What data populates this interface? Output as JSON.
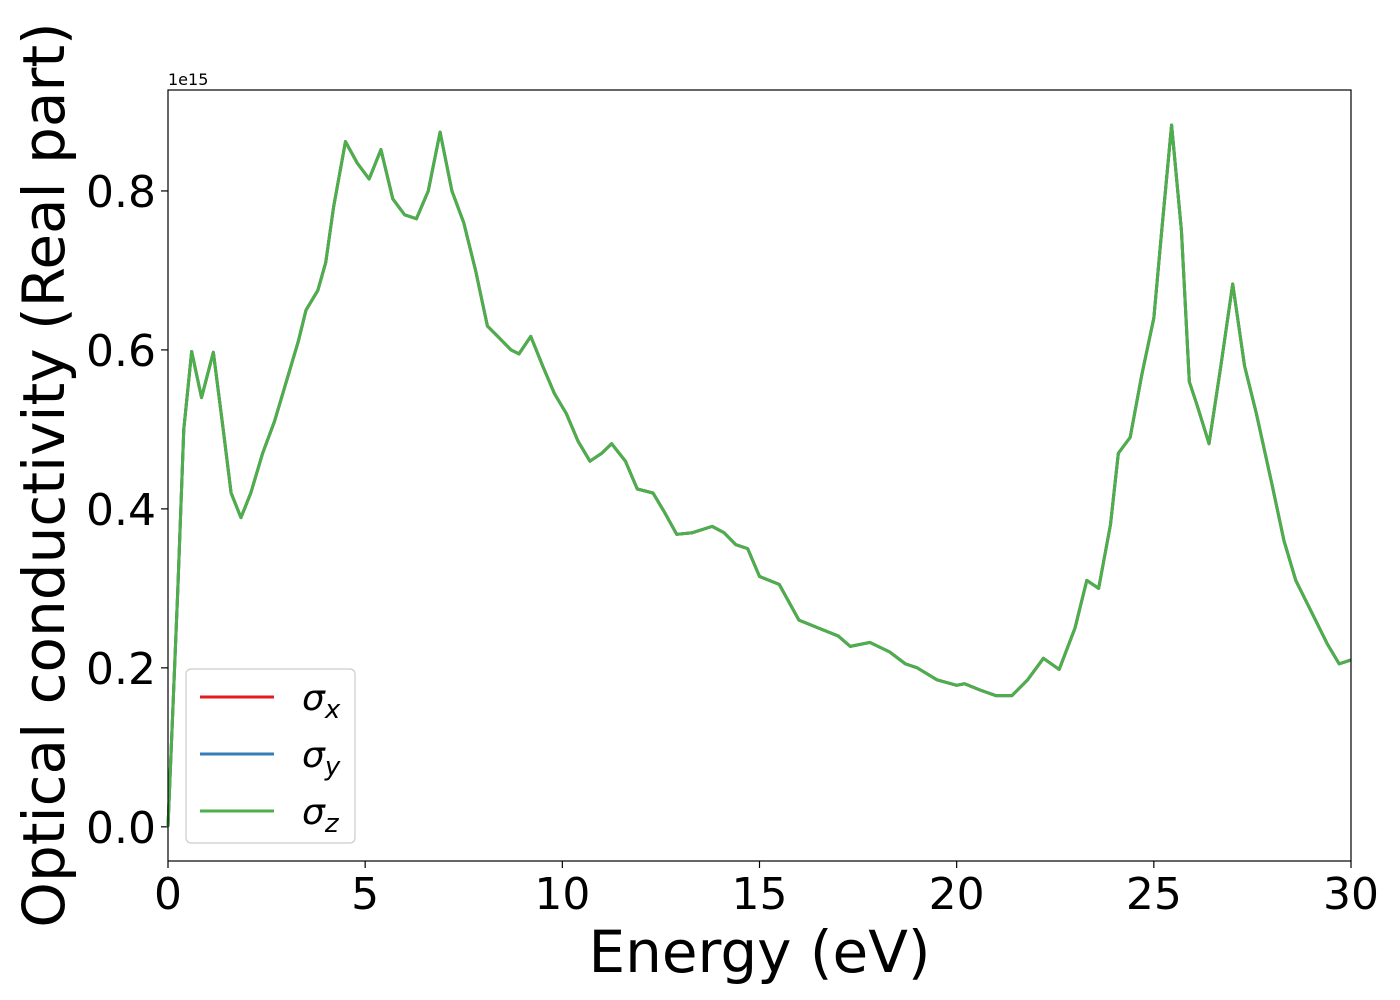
{
  "chart_data": {
    "type": "line",
    "x_label": "Energy (eV)",
    "y_label": "Optical conductivity (Real part)",
    "y_offset_text": "1e15",
    "xlim": [
      0,
      30
    ],
    "xticks": [
      0,
      5,
      10,
      15,
      20,
      25,
      30
    ],
    "ylim": [
      -0.043,
      0.927
    ],
    "yticks": [
      {
        "value": 0,
        "label": "0.0"
      },
      0.2,
      0.4,
      0.6,
      0.8
    ],
    "legend": "lower left",
    "x": [
      0,
      0.25,
      0.4,
      0.6,
      0.85,
      1.15,
      1.4,
      1.6,
      1.85,
      2.1,
      2.4,
      2.7,
      3.0,
      3.3,
      3.5,
      3.8,
      4.0,
      4.2,
      4.5,
      4.8,
      5.1,
      5.4,
      5.7,
      6.0,
      6.3,
      6.6,
      6.9,
      7.2,
      7.5,
      7.8,
      8.1,
      8.4,
      8.7,
      8.9,
      9.2,
      9.5,
      9.8,
      10.1,
      10.4,
      10.7,
      11.0,
      11.25,
      11.6,
      11.9,
      12.3,
      12.6,
      12.9,
      13.3,
      13.8,
      14.1,
      14.4,
      14.7,
      15.0,
      15.5,
      16.0,
      16.5,
      17.0,
      17.3,
      17.8,
      18.3,
      18.7,
      19.0,
      19.5,
      20.0,
      20.2,
      20.6,
      21.0,
      21.4,
      21.8,
      22.2,
      22.6,
      23.0,
      23.3,
      23.6,
      23.9,
      24.1,
      24.4,
      24.7,
      25.0,
      25.2,
      25.45,
      25.7,
      25.9,
      26.1,
      26.4,
      26.7,
      27.0,
      27.3,
      27.6,
      28.0,
      28.3,
      28.6,
      29.0,
      29.4,
      29.7,
      30.0
    ],
    "series": [
      {
        "name": "σx",
        "color": "#e41a1c",
        "values": [
          0,
          0.3,
          0.5,
          0.598,
          0.54,
          0.597,
          0.5,
          0.42,
          0.389,
          0.42,
          0.47,
          0.51,
          0.56,
          0.61,
          0.65,
          0.675,
          0.71,
          0.78,
          0.862,
          0.835,
          0.815,
          0.852,
          0.79,
          0.77,
          0.765,
          0.8,
          0.874,
          0.8,
          0.76,
          0.7,
          0.63,
          0.615,
          0.6,
          0.595,
          0.617,
          0.58,
          0.545,
          0.52,
          0.485,
          0.46,
          0.47,
          0.482,
          0.46,
          0.425,
          0.42,
          0.395,
          0.368,
          0.37,
          0.378,
          0.37,
          0.355,
          0.35,
          0.315,
          0.305,
          0.26,
          0.25,
          0.24,
          0.227,
          0.232,
          0.22,
          0.205,
          0.2,
          0.185,
          0.178,
          0.18,
          0.172,
          0.165,
          0.165,
          0.185,
          0.212,
          0.198,
          0.25,
          0.31,
          0.3,
          0.38,
          0.47,
          0.49,
          0.57,
          0.64,
          0.75,
          0.883,
          0.75,
          0.56,
          0.53,
          0.482,
          0.58,
          0.683,
          0.58,
          0.52,
          0.43,
          0.36,
          0.31,
          0.27,
          0.23,
          0.205,
          0.21
        ]
      },
      {
        "name": "σy",
        "color": "#377eb8",
        "values": [
          0,
          0.3,
          0.5,
          0.598,
          0.54,
          0.597,
          0.5,
          0.42,
          0.389,
          0.42,
          0.47,
          0.51,
          0.56,
          0.61,
          0.65,
          0.675,
          0.71,
          0.78,
          0.862,
          0.835,
          0.815,
          0.852,
          0.79,
          0.77,
          0.765,
          0.8,
          0.874,
          0.8,
          0.76,
          0.7,
          0.63,
          0.615,
          0.6,
          0.595,
          0.617,
          0.58,
          0.545,
          0.52,
          0.485,
          0.46,
          0.47,
          0.482,
          0.46,
          0.425,
          0.42,
          0.395,
          0.368,
          0.37,
          0.378,
          0.37,
          0.355,
          0.35,
          0.315,
          0.305,
          0.26,
          0.25,
          0.24,
          0.227,
          0.232,
          0.22,
          0.205,
          0.2,
          0.185,
          0.178,
          0.18,
          0.172,
          0.165,
          0.165,
          0.185,
          0.212,
          0.198,
          0.25,
          0.31,
          0.3,
          0.38,
          0.47,
          0.49,
          0.57,
          0.64,
          0.75,
          0.883,
          0.75,
          0.56,
          0.53,
          0.482,
          0.58,
          0.683,
          0.58,
          0.52,
          0.43,
          0.36,
          0.31,
          0.27,
          0.23,
          0.205,
          0.21
        ]
      },
      {
        "name": "σz",
        "color": "#4daf4a",
        "values": [
          0,
          0.3,
          0.5,
          0.598,
          0.54,
          0.597,
          0.5,
          0.42,
          0.389,
          0.42,
          0.47,
          0.51,
          0.56,
          0.61,
          0.65,
          0.675,
          0.71,
          0.78,
          0.862,
          0.835,
          0.815,
          0.852,
          0.79,
          0.77,
          0.765,
          0.8,
          0.874,
          0.8,
          0.76,
          0.7,
          0.63,
          0.615,
          0.6,
          0.595,
          0.617,
          0.58,
          0.545,
          0.52,
          0.485,
          0.46,
          0.47,
          0.482,
          0.46,
          0.425,
          0.42,
          0.395,
          0.368,
          0.37,
          0.378,
          0.37,
          0.355,
          0.35,
          0.315,
          0.305,
          0.26,
          0.25,
          0.24,
          0.227,
          0.232,
          0.22,
          0.205,
          0.2,
          0.185,
          0.178,
          0.18,
          0.172,
          0.165,
          0.165,
          0.185,
          0.212,
          0.198,
          0.25,
          0.31,
          0.3,
          0.38,
          0.47,
          0.49,
          0.57,
          0.64,
          0.75,
          0.883,
          0.75,
          0.56,
          0.53,
          0.482,
          0.58,
          0.683,
          0.58,
          0.52,
          0.43,
          0.36,
          0.31,
          0.27,
          0.23,
          0.205,
          0.21
        ]
      }
    ]
  }
}
